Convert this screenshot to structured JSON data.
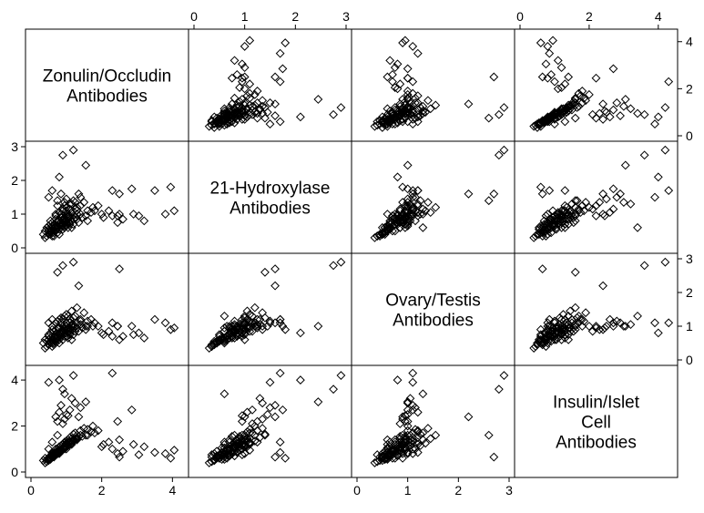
{
  "chart_data": {
    "type": "scatter-matrix",
    "marker": "hollow-diamond",
    "variables": [
      {
        "key": "zonulin",
        "label_lines": [
          "Zonulin/Occludin",
          "Antibodies"
        ],
        "range": [
          0,
          4.3
        ],
        "ticks": [
          0,
          2,
          4
        ],
        "tick_labels": [
          "0",
          "2",
          "4"
        ]
      },
      {
        "key": "hydroxylase",
        "label_lines": [
          "21-Hydroxylase",
          "Antibodies"
        ],
        "range": [
          0,
          3
        ],
        "ticks": [
          0,
          1,
          2,
          3
        ],
        "tick_labels": [
          "0",
          "1",
          "2",
          "3"
        ]
      },
      {
        "key": "ovary",
        "label_lines": [
          "Ovary/Testis",
          "Antibodies"
        ],
        "range": [
          0,
          3
        ],
        "ticks": [
          0,
          1,
          2,
          3
        ],
        "tick_labels": [
          "0",
          "1",
          "2",
          "3"
        ]
      },
      {
        "key": "insulin",
        "label_lines": [
          "Insulin/Islet",
          "Cell",
          "Antibodies"
        ],
        "range": [
          0,
          4.4
        ],
        "ticks": [
          0,
          2,
          4
        ],
        "tick_labels": [
          "0",
          "2",
          "4"
        ]
      }
    ],
    "points": [
      [
        0.55,
        0.45,
        0.5,
        0.6
      ],
      [
        0.7,
        0.6,
        0.55,
        0.75
      ],
      [
        0.85,
        0.75,
        0.7,
        0.9
      ],
      [
        1.0,
        0.8,
        0.85,
        1.1
      ],
      [
        0.6,
        0.5,
        0.6,
        0.7
      ],
      [
        0.75,
        0.65,
        0.7,
        0.85
      ],
      [
        0.9,
        0.7,
        0.8,
        1.0
      ],
      [
        1.1,
        0.9,
        0.95,
        1.3
      ],
      [
        0.5,
        0.4,
        0.45,
        0.5
      ],
      [
        0.65,
        0.55,
        0.6,
        0.7
      ],
      [
        0.8,
        0.7,
        0.75,
        0.95
      ],
      [
        0.95,
        0.85,
        0.9,
        1.15
      ],
      [
        1.2,
        0.95,
        1.05,
        1.4
      ],
      [
        0.7,
        0.55,
        0.65,
        0.8
      ],
      [
        0.85,
        0.65,
        0.7,
        0.95
      ],
      [
        1.0,
        0.75,
        0.8,
        1.2
      ],
      [
        0.45,
        0.35,
        0.4,
        0.45
      ],
      [
        0.6,
        0.45,
        0.5,
        0.65
      ],
      [
        0.75,
        0.6,
        0.65,
        0.8
      ],
      [
        0.9,
        0.8,
        0.85,
        1.05
      ],
      [
        1.05,
        0.85,
        0.95,
        1.25
      ],
      [
        1.3,
        1.0,
        1.1,
        1.5
      ],
      [
        0.55,
        0.5,
        0.55,
        0.6
      ],
      [
        0.7,
        0.65,
        0.6,
        0.75
      ],
      [
        0.85,
        0.7,
        0.75,
        0.95
      ],
      [
        1.0,
        0.95,
        0.9,
        1.2
      ],
      [
        1.15,
        1.05,
        1.0,
        1.35
      ],
      [
        0.65,
        0.45,
        0.5,
        0.7
      ],
      [
        0.8,
        0.55,
        0.6,
        0.85
      ],
      [
        0.95,
        0.65,
        0.7,
        1.0
      ],
      [
        1.1,
        0.75,
        0.85,
        1.2
      ],
      [
        0.4,
        0.3,
        0.35,
        0.4
      ],
      [
        0.5,
        0.55,
        0.6,
        0.55
      ],
      [
        0.65,
        0.7,
        0.65,
        0.75
      ],
      [
        0.8,
        0.8,
        0.8,
        0.9
      ],
      [
        0.95,
        0.9,
        0.95,
        1.1
      ],
      [
        1.1,
        0.7,
        0.75,
        1.3
      ],
      [
        1.25,
        0.9,
        0.85,
        1.45
      ],
      [
        1.4,
        1.0,
        1.05,
        1.6
      ],
      [
        0.6,
        0.6,
        0.5,
        0.65
      ],
      [
        0.75,
        0.75,
        0.65,
        0.8
      ],
      [
        0.9,
        0.85,
        0.8,
        1.0
      ],
      [
        1.05,
        0.95,
        0.9,
        1.15
      ],
      [
        1.2,
        0.85,
        1.0,
        1.35
      ],
      [
        0.55,
        0.4,
        0.55,
        0.55
      ],
      [
        0.7,
        0.5,
        0.7,
        0.75
      ],
      [
        0.85,
        0.6,
        0.85,
        0.9
      ],
      [
        1.0,
        0.7,
        1.0,
        1.1
      ],
      [
        1.15,
        0.8,
        0.9,
        1.25
      ],
      [
        1.3,
        0.85,
        0.95,
        1.4
      ],
      [
        0.9,
        1.1,
        1.0,
        1.2
      ],
      [
        1.0,
        1.2,
        1.1,
        1.35
      ],
      [
        1.1,
        1.3,
        1.2,
        1.5
      ],
      [
        1.2,
        1.4,
        1.25,
        1.65
      ],
      [
        0.8,
        1.05,
        0.95,
        1.1
      ],
      [
        0.95,
        1.25,
        1.05,
        1.3
      ],
      [
        1.25,
        1.15,
        1.3,
        1.7
      ],
      [
        1.4,
        1.25,
        1.2,
        1.8
      ],
      [
        1.5,
        1.35,
        1.4,
        1.9
      ],
      [
        0.7,
        0.95,
        1.1,
        1.0
      ],
      [
        0.85,
        1.0,
        1.25,
        1.15
      ],
      [
        1.0,
        1.1,
        1.35,
        1.25
      ],
      [
        1.15,
        1.05,
        1.45,
        1.45
      ],
      [
        1.3,
        1.2,
        1.55,
        1.6
      ],
      [
        0.6,
        0.65,
        1.0,
        0.85
      ],
      [
        0.75,
        0.8,
        1.15,
        1.0
      ],
      [
        0.9,
        0.95,
        1.2,
        1.2
      ],
      [
        1.05,
        1.0,
        1.3,
        1.4
      ],
      [
        0.5,
        0.5,
        0.75,
        0.6
      ],
      [
        0.65,
        0.6,
        0.85,
        0.8
      ],
      [
        0.8,
        0.7,
        0.95,
        0.95
      ],
      [
        0.95,
        0.8,
        1.05,
        1.15
      ],
      [
        1.6,
        1.1,
        1.15,
        1.85
      ],
      [
        1.75,
        1.2,
        1.0,
        2.0
      ],
      [
        1.55,
        0.95,
        0.9,
        1.6
      ],
      [
        1.7,
        1.05,
        1.2,
        1.75
      ],
      [
        0.45,
        0.6,
        0.55,
        0.55
      ],
      [
        0.55,
        0.7,
        0.65,
        0.7
      ],
      [
        0.6,
        0.35,
        0.4,
        0.75
      ],
      [
        0.75,
        0.45,
        0.55,
        0.9
      ],
      [
        0.35,
        0.4,
        0.5,
        0.5
      ],
      [
        0.4,
        0.5,
        0.6,
        0.6
      ],
      [
        1.05,
        0.6,
        0.65,
        1.3
      ],
      [
        1.2,
        0.7,
        0.75,
        1.4
      ],
      [
        1.35,
        0.75,
        0.85,
        1.55
      ],
      [
        0.9,
        0.55,
        0.6,
        1.05
      ],
      [
        1.0,
        0.65,
        0.7,
        1.0
      ],
      [
        0.85,
        0.9,
        0.85,
        0.95
      ],
      [
        0.7,
        0.85,
        0.75,
        0.85
      ],
      [
        0.6,
        0.75,
        0.9,
        0.8
      ],
      [
        0.95,
        0.6,
        0.95,
        1.05
      ],
      [
        1.1,
        0.95,
        0.8,
        1.2
      ],
      [
        0.5,
        0.65,
        0.7,
        0.6
      ],
      [
        0.65,
        0.35,
        0.45,
        0.65
      ],
      [
        0.8,
        0.4,
        0.5,
        0.8
      ],
      [
        1.15,
        0.6,
        0.6,
        1.2
      ],
      [
        1.45,
        0.9,
        0.95,
        1.55
      ],
      [
        1.6,
        0.8,
        1.0,
        1.6
      ],
      [
        1.3,
        1.1,
        0.95,
        1.45
      ],
      [
        0.55,
        0.8,
        0.8,
        0.7
      ],
      [
        0.9,
        1.15,
        0.85,
        2.1
      ],
      [
        0.95,
        1.35,
        0.9,
        2.3
      ],
      [
        1.0,
        1.45,
        1.0,
        2.5
      ],
      [
        0.85,
        1.6,
        1.1,
        2.9
      ],
      [
        0.75,
        1.25,
        0.95,
        2.2
      ],
      [
        0.8,
        1.05,
        1.2,
        2.6
      ],
      [
        1.05,
        0.95,
        0.95,
        2.45
      ],
      [
        1.1,
        1.15,
        1.1,
        2.7
      ],
      [
        1.15,
        1.3,
        1.05,
        3.2
      ],
      [
        0.7,
        1.0,
        0.9,
        2.4
      ],
      [
        1.25,
        1.35,
        1.0,
        3.0
      ],
      [
        1.4,
        1.5,
        1.15,
        2.8
      ],
      [
        1.8,
        1.1,
        1.1,
        1.7
      ],
      [
        1.9,
        1.25,
        1.0,
        1.8
      ],
      [
        2.0,
        1.0,
        0.8,
        1.1
      ],
      [
        2.05,
        0.9,
        0.75,
        1.2
      ],
      [
        2.3,
        0.95,
        0.7,
        1.0
      ],
      [
        2.2,
        1.1,
        0.85,
        1.3
      ],
      [
        2.45,
        0.75,
        1.0,
        0.8
      ],
      [
        2.6,
        0.85,
        0.7,
        0.9
      ],
      [
        2.9,
        1.0,
        0.75,
        1.2
      ],
      [
        3.05,
        0.95,
        0.8,
        0.75
      ],
      [
        2.5,
        1.0,
        0.6,
        1.4
      ],
      [
        3.2,
        0.8,
        0.65,
        1.1
      ],
      [
        3.8,
        1.0,
        1.1,
        0.8
      ],
      [
        4.05,
        1.1,
        0.95,
        0.95
      ],
      [
        0.95,
        0.6,
        1.3,
        3.4
      ],
      [
        0.5,
        1.5,
        1.1,
        3.9
      ],
      [
        1.35,
        1.6,
        2.2,
        2.4
      ],
      [
        0.5,
        0.65,
        0.6,
        1.0
      ],
      [
        0.6,
        1.7,
        1.2,
        1.3
      ],
      [
        0.8,
        2.1,
        0.8,
        4.0
      ],
      [
        0.9,
        2.75,
        2.8,
        3.6
      ],
      [
        1.55,
        2.45,
        1.0,
        3.05
      ],
      [
        0.75,
        1.4,
        2.6,
        1.6
      ],
      [
        2.45,
        0.95,
        1.0,
        2.2
      ],
      [
        2.5,
        1.6,
        2.7,
        0.65
      ],
      [
        3.5,
        1.7,
        1.2,
        0.85
      ],
      [
        3.95,
        1.8,
        0.9,
        0.6
      ],
      [
        1.2,
        2.9,
        2.9,
        4.2
      ],
      [
        2.3,
        1.7,
        1.1,
        4.3
      ],
      [
        2.85,
        1.75,
        1.0,
        2.7
      ]
    ]
  }
}
